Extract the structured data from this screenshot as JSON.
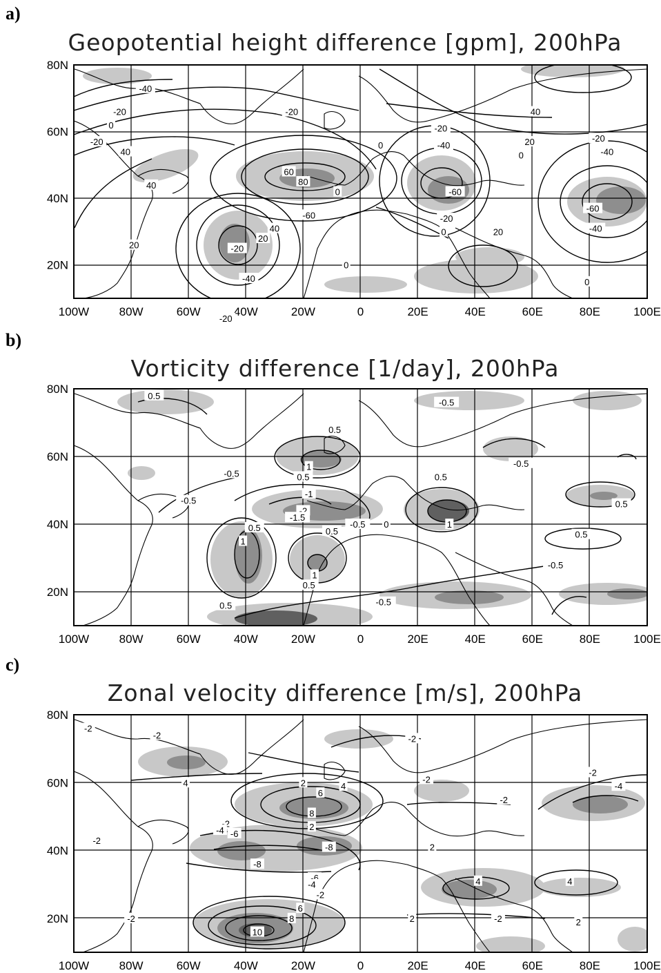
{
  "chart_data": [
    {
      "type": "heatmap",
      "panel": "a)",
      "title": "Geopotential height difference [gpm], 200hPa",
      "x_tick_labels": [
        "100W",
        "80W",
        "60W",
        "40W",
        "20W",
        "0",
        "20E",
        "40E",
        "60E",
        "80E",
        "100E"
      ],
      "y_tick_labels": [
        "20N",
        "40N",
        "60N",
        "80N"
      ],
      "xlim": [
        -100,
        100
      ],
      "ylim": [
        10,
        80
      ],
      "grid": true,
      "shading": "light grey |value| >= 40, dark grey |value| >= 60",
      "contour_labels": [
        {
          "text": "-40",
          "lon": -75,
          "lat": 73
        },
        {
          "text": "-20",
          "lon": -84,
          "lat": 66
        },
        {
          "text": "0",
          "lon": -87,
          "lat": 62
        },
        {
          "text": "-20",
          "lon": -24,
          "lat": 66
        },
        {
          "text": "-20",
          "lon": -92,
          "lat": 57
        },
        {
          "text": "40",
          "lon": -82,
          "lat": 54
        },
        {
          "text": "60",
          "lon": -25,
          "lat": 48
        },
        {
          "text": "80",
          "lon": -20,
          "lat": 45
        },
        {
          "text": "-60",
          "lon": -18,
          "lat": 35
        },
        {
          "text": "40",
          "lon": -30,
          "lat": 31
        },
        {
          "text": "20",
          "lon": -34,
          "lat": 28
        },
        {
          "text": "40",
          "lon": -73,
          "lat": 44
        },
        {
          "text": "-20",
          "lon": -43,
          "lat": 25
        },
        {
          "text": "20",
          "lon": -79,
          "lat": 26
        },
        {
          "text": "-40",
          "lon": -39,
          "lat": 16
        },
        {
          "text": "-20",
          "lon": -47,
          "lat": 4
        },
        {
          "text": "0",
          "lon": -8,
          "lat": 42
        },
        {
          "text": "0",
          "lon": 7,
          "lat": 56
        },
        {
          "text": "0",
          "lon": -5,
          "lat": 20
        },
        {
          "text": "-20",
          "lon": 28,
          "lat": 61
        },
        {
          "text": "-40",
          "lon": 29,
          "lat": 56
        },
        {
          "text": "-60",
          "lon": 33,
          "lat": 42
        },
        {
          "text": "-20",
          "lon": 30,
          "lat": 34
        },
        {
          "text": "0",
          "lon": 29,
          "lat": 30
        },
        {
          "text": "20",
          "lon": 48,
          "lat": 30
        },
        {
          "text": "40",
          "lon": 61,
          "lat": 66
        },
        {
          "text": "20",
          "lon": 59,
          "lat": 57
        },
        {
          "text": "0",
          "lon": 56,
          "lat": 53
        },
        {
          "text": "-20",
          "lon": 83,
          "lat": 58
        },
        {
          "text": "-40",
          "lon": 86,
          "lat": 54
        },
        {
          "text": "-60",
          "lon": 81,
          "lat": 37
        },
        {
          "text": "-40",
          "lon": 82,
          "lat": 31
        },
        {
          "text": "0",
          "lon": 79,
          "lat": 15
        }
      ]
    },
    {
      "type": "heatmap",
      "panel": "b)",
      "title": "Vorticity difference [1/day], 200hPa",
      "x_tick_labels": [
        "100W",
        "80W",
        "60W",
        "40W",
        "20W",
        "0",
        "20E",
        "40E",
        "60E",
        "80E",
        "100E"
      ],
      "y_tick_labels": [
        "20N",
        "40N",
        "60N",
        "80N"
      ],
      "xlim": [
        -100,
        100
      ],
      "ylim": [
        10,
        80
      ],
      "grid": true,
      "shading": "light grey |value| >= 0.5, dark grey |value| >= 1",
      "contour_labels": [
        {
          "text": "0.5",
          "lon": -72,
          "lat": 78
        },
        {
          "text": "-0.5",
          "lon": 30,
          "lat": 76
        },
        {
          "text": "0.5",
          "lon": -9,
          "lat": 68
        },
        {
          "text": "1",
          "lon": -18,
          "lat": 57
        },
        {
          "text": "0.5",
          "lon": -20,
          "lat": 54
        },
        {
          "text": "-0.5",
          "lon": -45,
          "lat": 55
        },
        {
          "text": "-0.5",
          "lon": -60,
          "lat": 47
        },
        {
          "text": "-1",
          "lon": -18,
          "lat": 49
        },
        {
          "text": "-2",
          "lon": -20,
          "lat": 44
        },
        {
          "text": "-1.5",
          "lon": -22,
          "lat": 42
        },
        {
          "text": "0.5",
          "lon": -10,
          "lat": 38
        },
        {
          "text": "-0.5",
          "lon": -1,
          "lat": 40
        },
        {
          "text": "0",
          "lon": 9,
          "lat": 40
        },
        {
          "text": "0.5",
          "lon": 28,
          "lat": 54
        },
        {
          "text": "1",
          "lon": 31,
          "lat": 40
        },
        {
          "text": "-0.5",
          "lon": 56,
          "lat": 58
        },
        {
          "text": "0.5",
          "lon": 91,
          "lat": 46
        },
        {
          "text": "0.5",
          "lon": 77,
          "lat": 37
        },
        {
          "text": "-0.5",
          "lon": 68,
          "lat": 28
        },
        {
          "text": "0.5",
          "lon": -37,
          "lat": 39
        },
        {
          "text": "1",
          "lon": -41,
          "lat": 35
        },
        {
          "text": "1",
          "lon": -16,
          "lat": 25
        },
        {
          "text": "0.5",
          "lon": -18,
          "lat": 22
        },
        {
          "text": "0.5",
          "lon": -47,
          "lat": 16
        },
        {
          "text": "-0.5",
          "lon": 8,
          "lat": 17
        }
      ]
    },
    {
      "type": "heatmap",
      "panel": "c)",
      "title": "Zonal velocity difference [m/s], 200hPa",
      "x_tick_labels": [
        "100W",
        "80W",
        "60W",
        "40W",
        "20W",
        "0",
        "20E",
        "40E",
        "60E",
        "80E",
        "100E"
      ],
      "y_tick_labels": [
        "20N",
        "40N",
        "60N",
        "80N"
      ],
      "xlim": [
        -100,
        100
      ],
      "ylim": [
        10,
        80
      ],
      "grid": true,
      "shading": "light grey |value| >= 4, dark grey |value| >= 8",
      "contour_labels": [
        {
          "text": "-2",
          "lon": -95,
          "lat": 76
        },
        {
          "text": "-2",
          "lon": -71,
          "lat": 74
        },
        {
          "text": "-2",
          "lon": 18,
          "lat": 73
        },
        {
          "text": "-2",
          "lon": 81,
          "lat": 63
        },
        {
          "text": "-4",
          "lon": 90,
          "lat": 59
        },
        {
          "text": "-2",
          "lon": 50,
          "lat": 55
        },
        {
          "text": "-2",
          "lon": 23,
          "lat": 61
        },
        {
          "text": "4",
          "lon": -61,
          "lat": 60
        },
        {
          "text": "2",
          "lon": -20,
          "lat": 60
        },
        {
          "text": "4",
          "lon": -6,
          "lat": 59
        },
        {
          "text": "6",
          "lon": -14,
          "lat": 57
        },
        {
          "text": "8",
          "lon": -17,
          "lat": 51
        },
        {
          "text": "2",
          "lon": -17,
          "lat": 47
        },
        {
          "text": "-2",
          "lon": -47,
          "lat": 48
        },
        {
          "text": "-4",
          "lon": -49,
          "lat": 46
        },
        {
          "text": "-6",
          "lon": -44,
          "lat": 45
        },
        {
          "text": "-8",
          "lon": -11,
          "lat": 41
        },
        {
          "text": "-8",
          "lon": -36,
          "lat": 36
        },
        {
          "text": "-6",
          "lon": -16,
          "lat": 32
        },
        {
          "text": "-4",
          "lon": -17,
          "lat": 30
        },
        {
          "text": "-2",
          "lon": -14,
          "lat": 27
        },
        {
          "text": "2",
          "lon": 25,
          "lat": 41
        },
        {
          "text": "4",
          "lon": 41,
          "lat": 31
        },
        {
          "text": "4",
          "lon": 73,
          "lat": 31
        },
        {
          "text": "2",
          "lon": 18,
          "lat": 20
        },
        {
          "text": "-2",
          "lon": 48,
          "lat": 20
        },
        {
          "text": "2",
          "lon": 76,
          "lat": 19
        },
        {
          "text": "-2",
          "lon": -80,
          "lat": 20
        },
        {
          "text": "6",
          "lon": -21,
          "lat": 23
        },
        {
          "text": "8",
          "lon": -24,
          "lat": 20
        },
        {
          "text": "10",
          "lon": -36,
          "lat": 16
        },
        {
          "text": "-2",
          "lon": -92,
          "lat": 43
        }
      ]
    }
  ]
}
